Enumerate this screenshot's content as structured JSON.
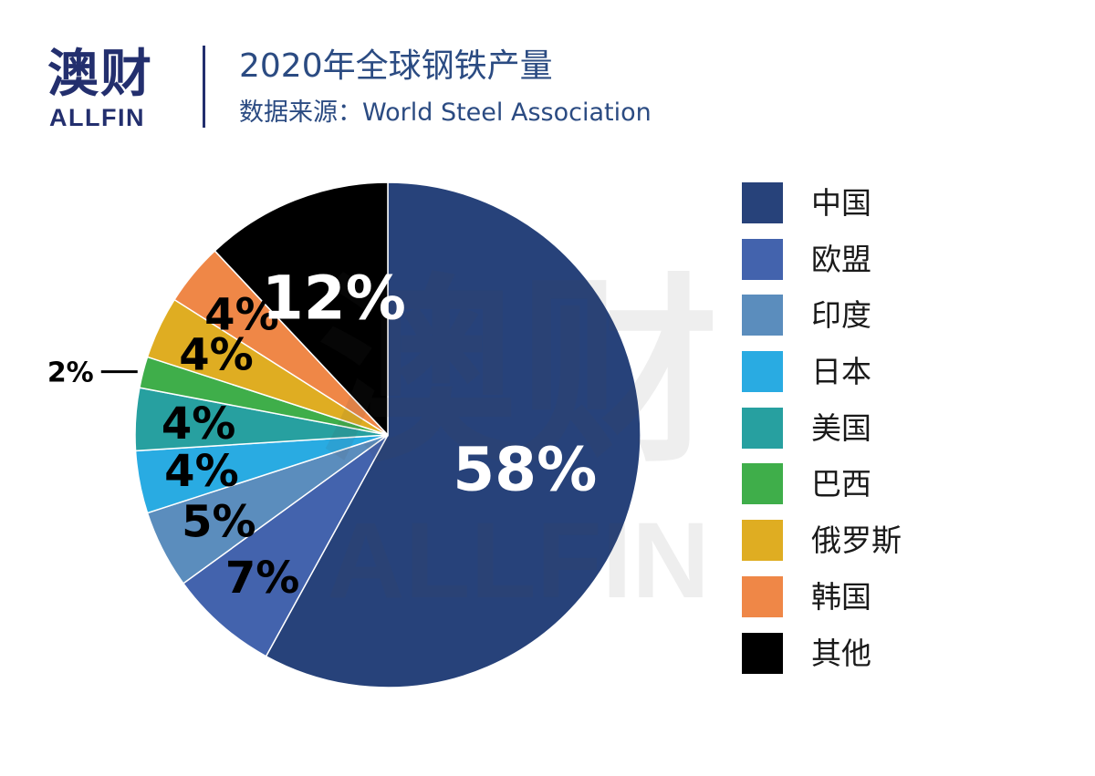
{
  "header": {
    "logo_cn": "澳财",
    "logo_en": "ALLFIN",
    "title": "2020年全球钢铁产量",
    "subtitle": "数据来源：World Steel Association"
  },
  "watermark": {
    "cn": "澳财",
    "en": "ALLFIN"
  },
  "chart_data": {
    "type": "pie",
    "title": "2020年全球钢铁产量",
    "subtitle": "数据来源：World Steel Association",
    "categories": [
      "中国",
      "欧盟",
      "印度",
      "日本",
      "美国",
      "巴西",
      "俄罗斯",
      "韩国",
      "其他"
    ],
    "values": [
      58,
      7,
      5,
      4,
      4,
      2,
      4,
      4,
      12
    ],
    "labels": [
      "58%",
      "7%",
      "5%",
      "4%",
      "4%",
      "2%",
      "4%",
      "4%",
      "12%"
    ],
    "colors": [
      "#27427a",
      "#4363ad",
      "#5b8dbd",
      "#29abe2",
      "#27a0a0",
      "#3fae4a",
      "#dfad22",
      "#ef8747",
      "#000000"
    ],
    "label_colors": [
      "#ffffff",
      "#000000",
      "#000000",
      "#000000",
      "#000000",
      "#000000",
      "#000000",
      "#000000",
      "#ffffff"
    ],
    "start": "12 o'clock",
    "direction": "clockwise",
    "legend_position": "right"
  }
}
